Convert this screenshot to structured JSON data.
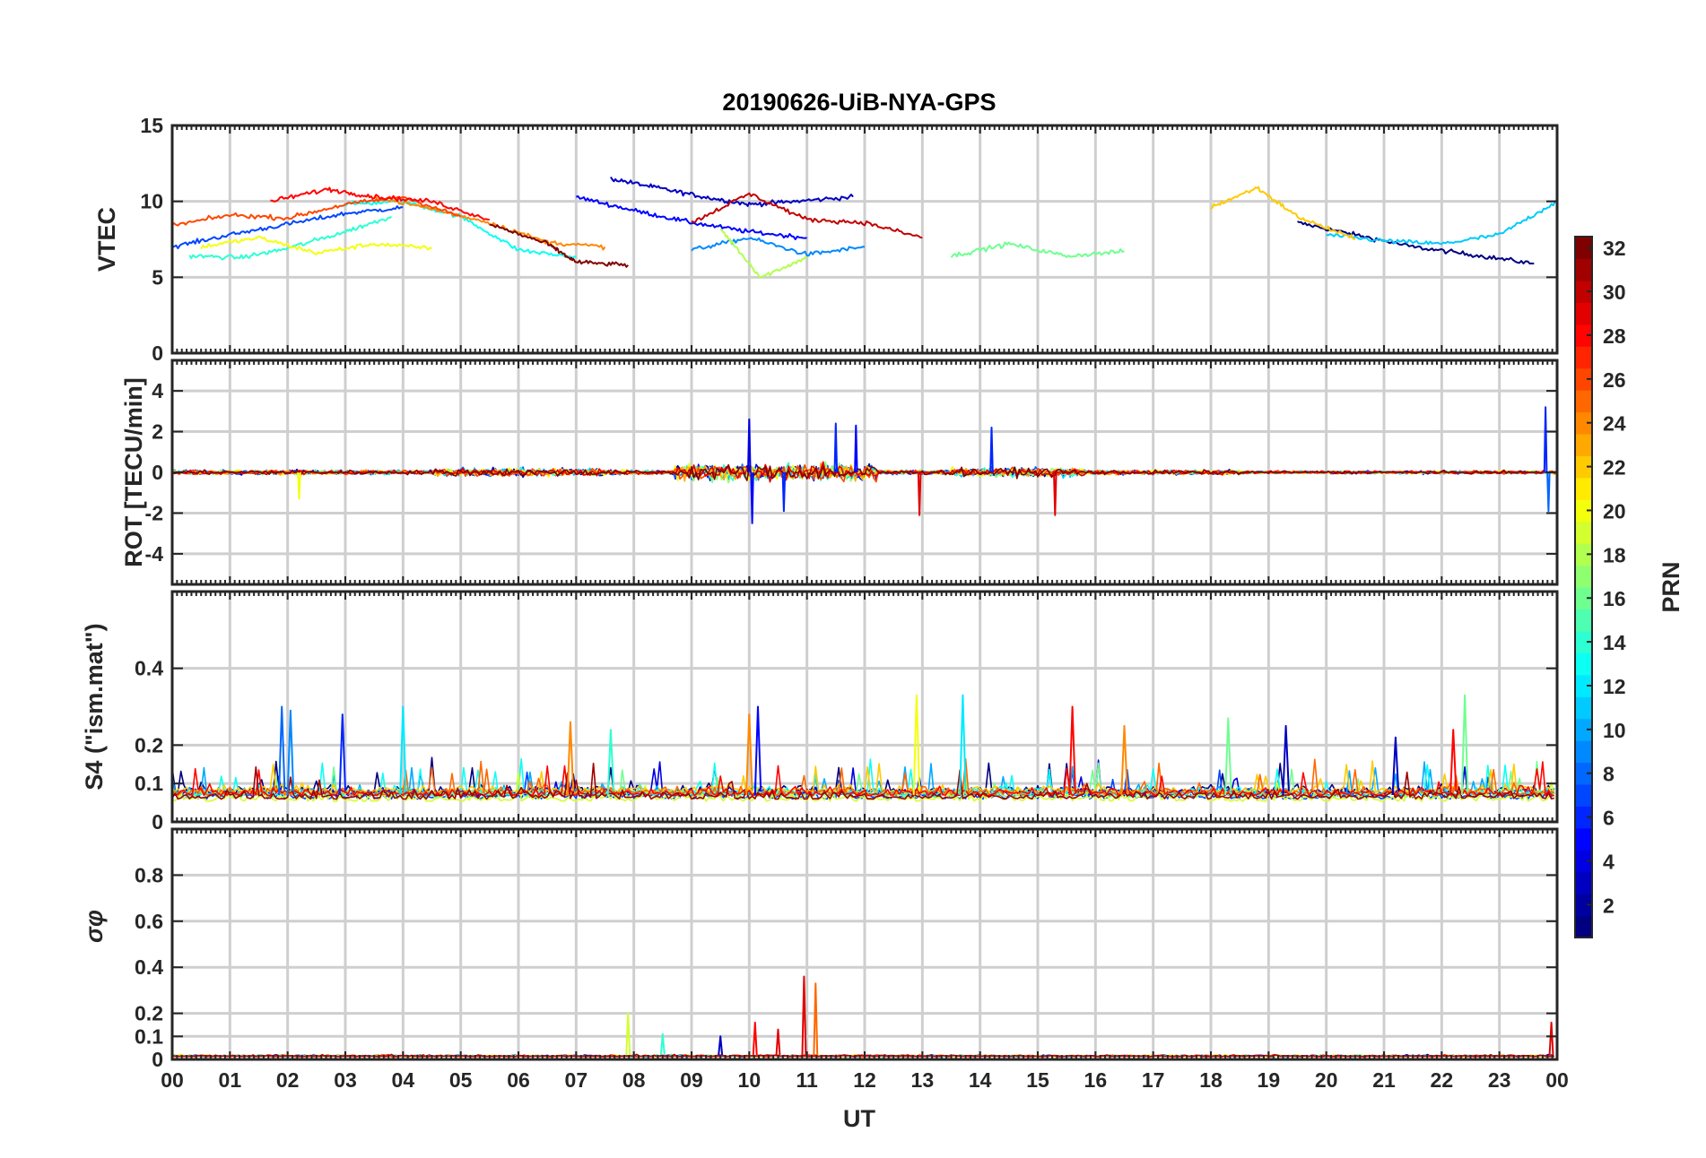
{
  "chart_data": {
    "type": "line",
    "title": "20190626-UiB-NYA-GPS",
    "xlabel": "UT",
    "xtick_labels": [
      "00",
      "01",
      "02",
      "03",
      "04",
      "05",
      "06",
      "07",
      "08",
      "09",
      "10",
      "11",
      "12",
      "13",
      "14",
      "15",
      "16",
      "17",
      "18",
      "19",
      "20",
      "21",
      "22",
      "23",
      "00"
    ],
    "xlim": [
      0,
      24
    ],
    "grid": true,
    "panels": [
      {
        "id": "vtec",
        "ylabel": "VTEC",
        "ylim": [
          0,
          15
        ],
        "yticks": [
          0,
          5,
          10,
          15
        ],
        "ytick_labels": [
          "0",
          "5",
          "10",
          "15"
        ],
        "series_note": "GPS PRN 1-32",
        "series": [
          {
            "prn": 1,
            "x": [
              19.5,
              20.5,
              21.5,
              22.5,
              23.6
            ],
            "y": [
              8.6,
              7.8,
              7.0,
              6.5,
              5.9
            ]
          },
          {
            "prn": 3,
            "x": [
              7.6,
              8.4,
              9.2,
              10.0,
              10.8,
              11.8
            ],
            "y": [
              11.5,
              10.9,
              10.3,
              9.8,
              10.0,
              10.3
            ]
          },
          {
            "prn": 5,
            "x": [
              7.0,
              8.0,
              9.0,
              10.0,
              11.0
            ],
            "y": [
              10.3,
              9.4,
              8.6,
              8.0,
              7.6
            ]
          },
          {
            "prn": 7,
            "x": [
              0.0,
              1.0,
              2.0,
              3.0,
              4.0
            ],
            "y": [
              7.0,
              7.8,
              8.5,
              9.2,
              9.6
            ]
          },
          {
            "prn": 9,
            "x": [
              9.0,
              10.0,
              11.0,
              12.0
            ],
            "y": [
              6.8,
              7.6,
              6.5,
              7.0
            ]
          },
          {
            "prn": 11,
            "x": [
              20.0,
              21.0,
              22.0,
              23.0,
              24.0
            ],
            "y": [
              7.8,
              7.4,
              7.2,
              7.8,
              10.0
            ]
          },
          {
            "prn": 13,
            "x": [
              3.0,
              4.0,
              5.0,
              6.0,
              7.0
            ],
            "y": [
              9.8,
              10.0,
              9.0,
              6.8,
              6.3
            ]
          },
          {
            "prn": 14,
            "x": [
              0.3,
              1.2,
              2.0,
              3.0,
              3.8
            ],
            "y": [
              6.4,
              6.3,
              6.9,
              8.0,
              9.0
            ]
          },
          {
            "prn": 16,
            "x": [
              13.5,
              14.5,
              15.5,
              16.5
            ],
            "y": [
              6.4,
              7.2,
              6.4,
              6.7
            ]
          },
          {
            "prn": 18,
            "x": [
              9.5,
              10.2,
              11.0
            ],
            "y": [
              8.2,
              5.0,
              6.3
            ]
          },
          {
            "prn": 20,
            "x": [
              0.5,
              1.5,
              2.5,
              3.5,
              4.5
            ],
            "y": [
              7.0,
              7.6,
              6.6,
              7.2,
              6.9
            ]
          },
          {
            "prn": 22,
            "x": [
              18.0,
              18.8,
              19.5,
              20.5
            ],
            "y": [
              9.6,
              10.9,
              9.0,
              7.5
            ]
          },
          {
            "prn": 24,
            "x": [
              3.5,
              4.5,
              5.5,
              6.5,
              7.5
            ],
            "y": [
              10.3,
              9.5,
              8.6,
              7.3,
              7.0
            ]
          },
          {
            "prn": 26,
            "x": [
              0.0,
              1.0,
              2.0,
              3.0,
              4.0,
              5.0
            ],
            "y": [
              8.4,
              9.1,
              8.9,
              9.8,
              10.3,
              9.0
            ]
          },
          {
            "prn": 28,
            "x": [
              1.7,
              2.7,
              3.5,
              4.5,
              5.5
            ],
            "y": [
              10.0,
              10.8,
              10.3,
              10.0,
              8.8
            ]
          },
          {
            "prn": 30,
            "x": [
              9.0,
              10.0,
              11.0,
              12.0,
              13.0
            ],
            "y": [
              8.6,
              10.5,
              8.8,
              8.6,
              7.6
            ]
          },
          {
            "prn": 32,
            "x": [
              5.5,
              6.5,
              7.0,
              7.9
            ],
            "y": [
              8.5,
              7.2,
              6.0,
              5.8
            ]
          }
        ]
      },
      {
        "id": "rot",
        "ylabel": "ROT [TECU/min]",
        "ylim": [
          -5.5,
          5.5
        ],
        "yticks": [
          -4,
          -2,
          0,
          2,
          4
        ],
        "ytick_labels": [
          "-4",
          "-2",
          "0",
          "2",
          "4"
        ],
        "spikes": [
          {
            "x": 10.0,
            "y": 2.6,
            "prn": 4
          },
          {
            "x": 10.05,
            "y": -2.5,
            "prn": 5
          },
          {
            "x": 11.5,
            "y": 2.4,
            "prn": 6
          },
          {
            "x": 11.85,
            "y": 2.3,
            "prn": 5
          },
          {
            "x": 10.6,
            "y": -1.9,
            "prn": 6
          },
          {
            "x": 12.95,
            "y": -2.1,
            "prn": 29
          },
          {
            "x": 14.2,
            "y": 2.2,
            "prn": 6
          },
          {
            "x": 15.3,
            "y": -2.1,
            "prn": 29
          },
          {
            "x": 23.8,
            "y": 3.2,
            "prn": 6
          },
          {
            "x": 23.85,
            "y": -1.9,
            "prn": 8
          },
          {
            "x": 2.2,
            "y": -1.3,
            "prn": 20
          }
        ]
      },
      {
        "id": "s4",
        "ylabel": "S4 (\"ism.mat\")",
        "ylim": [
          0,
          0.6
        ],
        "yticks": [
          0,
          0.1,
          0.2,
          0.4
        ],
        "ytick_labels": [
          "0",
          "0.1",
          "0.2",
          "0.4"
        ],
        "spikes": [
          {
            "x": 1.9,
            "y": 0.3,
            "prn": 8
          },
          {
            "x": 2.05,
            "y": 0.29,
            "prn": 9
          },
          {
            "x": 2.95,
            "y": 0.28,
            "prn": 6
          },
          {
            "x": 4.0,
            "y": 0.3,
            "prn": 12
          },
          {
            "x": 6.9,
            "y": 0.26,
            "prn": 24
          },
          {
            "x": 7.6,
            "y": 0.24,
            "prn": 14
          },
          {
            "x": 10.15,
            "y": 0.3,
            "prn": 5
          },
          {
            "x": 10.0,
            "y": 0.28,
            "prn": 24
          },
          {
            "x": 12.9,
            "y": 0.33,
            "prn": 20
          },
          {
            "x": 13.7,
            "y": 0.33,
            "prn": 12
          },
          {
            "x": 15.6,
            "y": 0.3,
            "prn": 28
          },
          {
            "x": 16.5,
            "y": 0.25,
            "prn": 24
          },
          {
            "x": 18.3,
            "y": 0.27,
            "prn": 16
          },
          {
            "x": 19.3,
            "y": 0.25,
            "prn": 3
          },
          {
            "x": 21.2,
            "y": 0.22,
            "prn": 3
          },
          {
            "x": 22.4,
            "y": 0.33,
            "prn": 16
          },
          {
            "x": 22.2,
            "y": 0.24,
            "prn": 28
          }
        ]
      },
      {
        "id": "sigma_phi",
        "ylabel": "σφ",
        "ylim": [
          0,
          1.0
        ],
        "yticks": [
          0,
          0.1,
          0.2,
          0.4,
          0.6,
          0.8
        ],
        "ytick_labels": [
          "0",
          "0.1",
          "0.2",
          "0.4",
          "0.6",
          "0.8"
        ],
        "spikes": [
          {
            "x": 7.9,
            "y": 0.2,
            "prn": 19
          },
          {
            "x": 8.5,
            "y": 0.11,
            "prn": 14
          },
          {
            "x": 9.5,
            "y": 0.1,
            "prn": 3
          },
          {
            "x": 10.1,
            "y": 0.16,
            "prn": 28
          },
          {
            "x": 10.5,
            "y": 0.13,
            "prn": 29
          },
          {
            "x": 10.95,
            "y": 0.36,
            "prn": 29
          },
          {
            "x": 11.15,
            "y": 0.33,
            "prn": 25
          },
          {
            "x": 23.9,
            "y": 0.16,
            "prn": 29
          }
        ]
      }
    ],
    "colorbar": {
      "label": "PRN",
      "range": [
        1,
        32
      ],
      "colormap": "jet",
      "ticks": [
        2,
        4,
        6,
        8,
        10,
        12,
        14,
        16,
        18,
        20,
        22,
        24,
        26,
        28,
        30,
        32
      ],
      "tick_labels": [
        "2",
        "4",
        "6",
        "8",
        "10",
        "12",
        "14",
        "16",
        "18",
        "20",
        "22",
        "24",
        "26",
        "28",
        "30",
        "32"
      ]
    }
  }
}
